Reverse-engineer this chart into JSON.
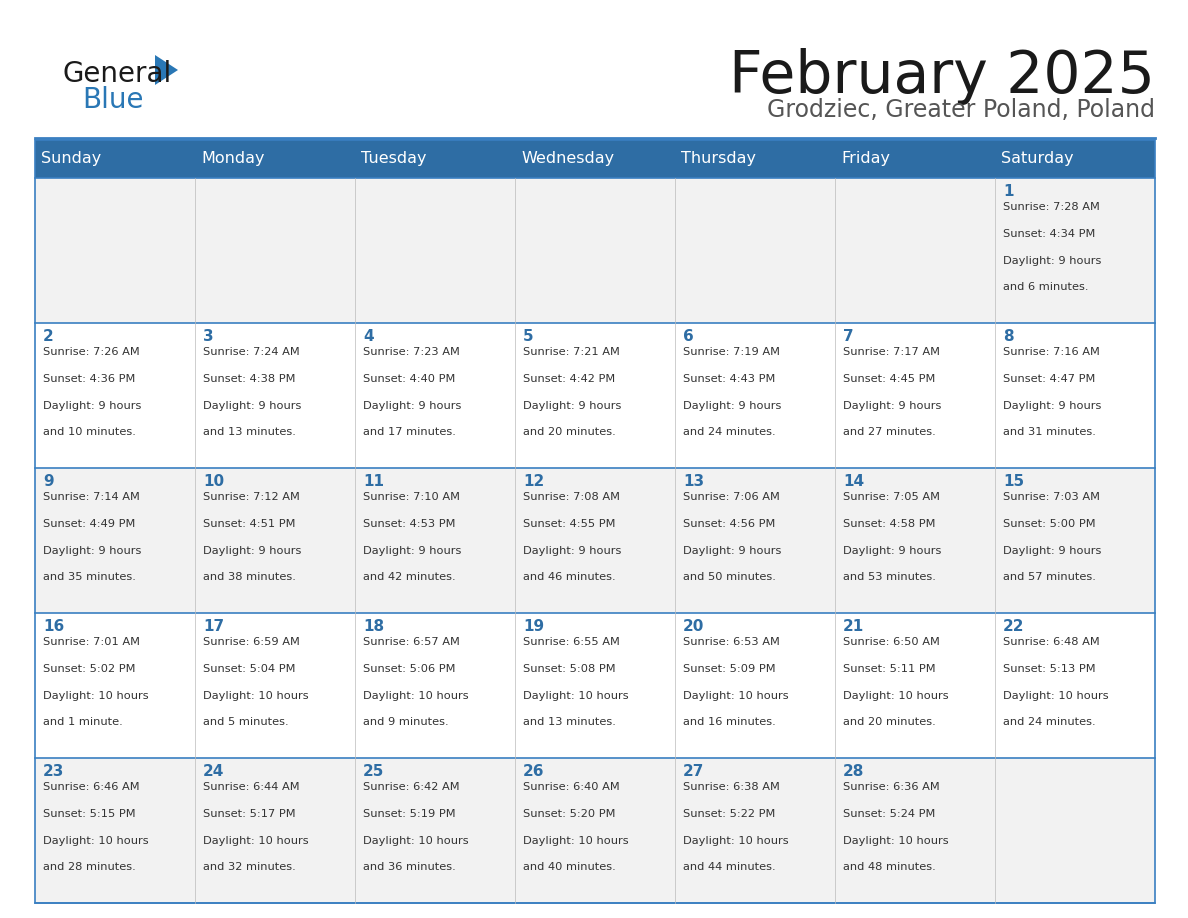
{
  "title": "February 2025",
  "subtitle": "Grodziec, Greater Poland, Poland",
  "header_bg": "#2E6DA4",
  "header_text_color": "#FFFFFF",
  "cell_bg_odd": "#F2F2F2",
  "cell_bg_even": "#FFFFFF",
  "title_color": "#222222",
  "subtitle_color": "#555555",
  "day_number_color": "#2E6DA4",
  "cell_text_color": "#333333",
  "border_color": "#2E6DA4",
  "line_color": "#3A7FC1",
  "days_of_week": [
    "Sunday",
    "Monday",
    "Tuesday",
    "Wednesday",
    "Thursday",
    "Friday",
    "Saturday"
  ],
  "weeks": [
    [
      {
        "day": null,
        "sunrise": null,
        "sunset": null,
        "daylight_h": null,
        "daylight_m": null
      },
      {
        "day": null,
        "sunrise": null,
        "sunset": null,
        "daylight_h": null,
        "daylight_m": null
      },
      {
        "day": null,
        "sunrise": null,
        "sunset": null,
        "daylight_h": null,
        "daylight_m": null
      },
      {
        "day": null,
        "sunrise": null,
        "sunset": null,
        "daylight_h": null,
        "daylight_m": null
      },
      {
        "day": null,
        "sunrise": null,
        "sunset": null,
        "daylight_h": null,
        "daylight_m": null
      },
      {
        "day": null,
        "sunrise": null,
        "sunset": null,
        "daylight_h": null,
        "daylight_m": null
      },
      {
        "day": 1,
        "sunrise": "7:28 AM",
        "sunset": "4:34 PM",
        "daylight_h": "9 hours",
        "daylight_m": "and 6 minutes."
      }
    ],
    [
      {
        "day": 2,
        "sunrise": "7:26 AM",
        "sunset": "4:36 PM",
        "daylight_h": "9 hours",
        "daylight_m": "and 10 minutes."
      },
      {
        "day": 3,
        "sunrise": "7:24 AM",
        "sunset": "4:38 PM",
        "daylight_h": "9 hours",
        "daylight_m": "and 13 minutes."
      },
      {
        "day": 4,
        "sunrise": "7:23 AM",
        "sunset": "4:40 PM",
        "daylight_h": "9 hours",
        "daylight_m": "and 17 minutes."
      },
      {
        "day": 5,
        "sunrise": "7:21 AM",
        "sunset": "4:42 PM",
        "daylight_h": "9 hours",
        "daylight_m": "and 20 minutes."
      },
      {
        "day": 6,
        "sunrise": "7:19 AM",
        "sunset": "4:43 PM",
        "daylight_h": "9 hours",
        "daylight_m": "and 24 minutes."
      },
      {
        "day": 7,
        "sunrise": "7:17 AM",
        "sunset": "4:45 PM",
        "daylight_h": "9 hours",
        "daylight_m": "and 27 minutes."
      },
      {
        "day": 8,
        "sunrise": "7:16 AM",
        "sunset": "4:47 PM",
        "daylight_h": "9 hours",
        "daylight_m": "and 31 minutes."
      }
    ],
    [
      {
        "day": 9,
        "sunrise": "7:14 AM",
        "sunset": "4:49 PM",
        "daylight_h": "9 hours",
        "daylight_m": "and 35 minutes."
      },
      {
        "day": 10,
        "sunrise": "7:12 AM",
        "sunset": "4:51 PM",
        "daylight_h": "9 hours",
        "daylight_m": "and 38 minutes."
      },
      {
        "day": 11,
        "sunrise": "7:10 AM",
        "sunset": "4:53 PM",
        "daylight_h": "9 hours",
        "daylight_m": "and 42 minutes."
      },
      {
        "day": 12,
        "sunrise": "7:08 AM",
        "sunset": "4:55 PM",
        "daylight_h": "9 hours",
        "daylight_m": "and 46 minutes."
      },
      {
        "day": 13,
        "sunrise": "7:06 AM",
        "sunset": "4:56 PM",
        "daylight_h": "9 hours",
        "daylight_m": "and 50 minutes."
      },
      {
        "day": 14,
        "sunrise": "7:05 AM",
        "sunset": "4:58 PM",
        "daylight_h": "9 hours",
        "daylight_m": "and 53 minutes."
      },
      {
        "day": 15,
        "sunrise": "7:03 AM",
        "sunset": "5:00 PM",
        "daylight_h": "9 hours",
        "daylight_m": "and 57 minutes."
      }
    ],
    [
      {
        "day": 16,
        "sunrise": "7:01 AM",
        "sunset": "5:02 PM",
        "daylight_h": "10 hours",
        "daylight_m": "and 1 minute."
      },
      {
        "day": 17,
        "sunrise": "6:59 AM",
        "sunset": "5:04 PM",
        "daylight_h": "10 hours",
        "daylight_m": "and 5 minutes."
      },
      {
        "day": 18,
        "sunrise": "6:57 AM",
        "sunset": "5:06 PM",
        "daylight_h": "10 hours",
        "daylight_m": "and 9 minutes."
      },
      {
        "day": 19,
        "sunrise": "6:55 AM",
        "sunset": "5:08 PM",
        "daylight_h": "10 hours",
        "daylight_m": "and 13 minutes."
      },
      {
        "day": 20,
        "sunrise": "6:53 AM",
        "sunset": "5:09 PM",
        "daylight_h": "10 hours",
        "daylight_m": "and 16 minutes."
      },
      {
        "day": 21,
        "sunrise": "6:50 AM",
        "sunset": "5:11 PM",
        "daylight_h": "10 hours",
        "daylight_m": "and 20 minutes."
      },
      {
        "day": 22,
        "sunrise": "6:48 AM",
        "sunset": "5:13 PM",
        "daylight_h": "10 hours",
        "daylight_m": "and 24 minutes."
      }
    ],
    [
      {
        "day": 23,
        "sunrise": "6:46 AM",
        "sunset": "5:15 PM",
        "daylight_h": "10 hours",
        "daylight_m": "and 28 minutes."
      },
      {
        "day": 24,
        "sunrise": "6:44 AM",
        "sunset": "5:17 PM",
        "daylight_h": "10 hours",
        "daylight_m": "and 32 minutes."
      },
      {
        "day": 25,
        "sunrise": "6:42 AM",
        "sunset": "5:19 PM",
        "daylight_h": "10 hours",
        "daylight_m": "and 36 minutes."
      },
      {
        "day": 26,
        "sunrise": "6:40 AM",
        "sunset": "5:20 PM",
        "daylight_h": "10 hours",
        "daylight_m": "and 40 minutes."
      },
      {
        "day": 27,
        "sunrise": "6:38 AM",
        "sunset": "5:22 PM",
        "daylight_h": "10 hours",
        "daylight_m": "and 44 minutes."
      },
      {
        "day": 28,
        "sunrise": "6:36 AM",
        "sunset": "5:24 PM",
        "daylight_h": "10 hours",
        "daylight_m": "and 48 minutes."
      },
      {
        "day": null,
        "sunrise": null,
        "sunset": null,
        "daylight_h": null,
        "daylight_m": null
      }
    ]
  ]
}
